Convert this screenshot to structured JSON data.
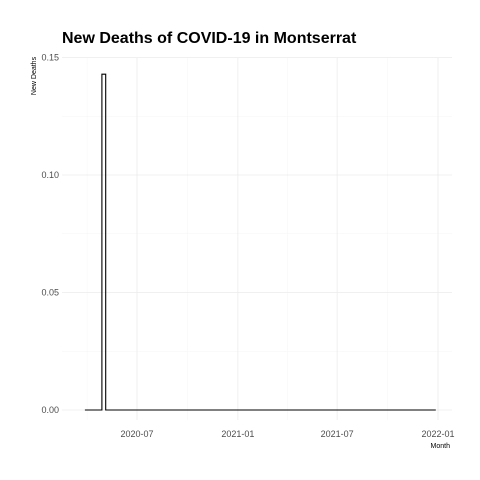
{
  "chart_data": {
    "type": "line",
    "title": "New Deaths of COVID-19 in Montserrat",
    "xlabel": "Month",
    "ylabel": "New Deaths",
    "x_tick_labels": [
      "2020-07",
      "2021-01",
      "2021-07",
      "2022-01"
    ],
    "y_tick_labels": [
      "0.00",
      "0.05",
      "0.10",
      "0.15"
    ],
    "y_ticks": [
      0,
      0.05,
      0.1,
      0.15
    ],
    "ylim": [
      0,
      0.15
    ],
    "xlim": [
      "2020-03-15",
      "2022-01-15"
    ],
    "grid": true,
    "legend": "none",
    "series": [
      {
        "points": [
          {
            "x": "2020-03-28",
            "y": 0
          },
          {
            "x": "2020-04-28",
            "y": 0
          },
          {
            "x": "2020-04-28",
            "y": 0.1429
          },
          {
            "x": "2020-05-05",
            "y": 0.1429
          },
          {
            "x": "2020-05-05",
            "y": 0
          },
          {
            "x": "2021-12-28",
            "y": 0
          }
        ]
      }
    ]
  }
}
